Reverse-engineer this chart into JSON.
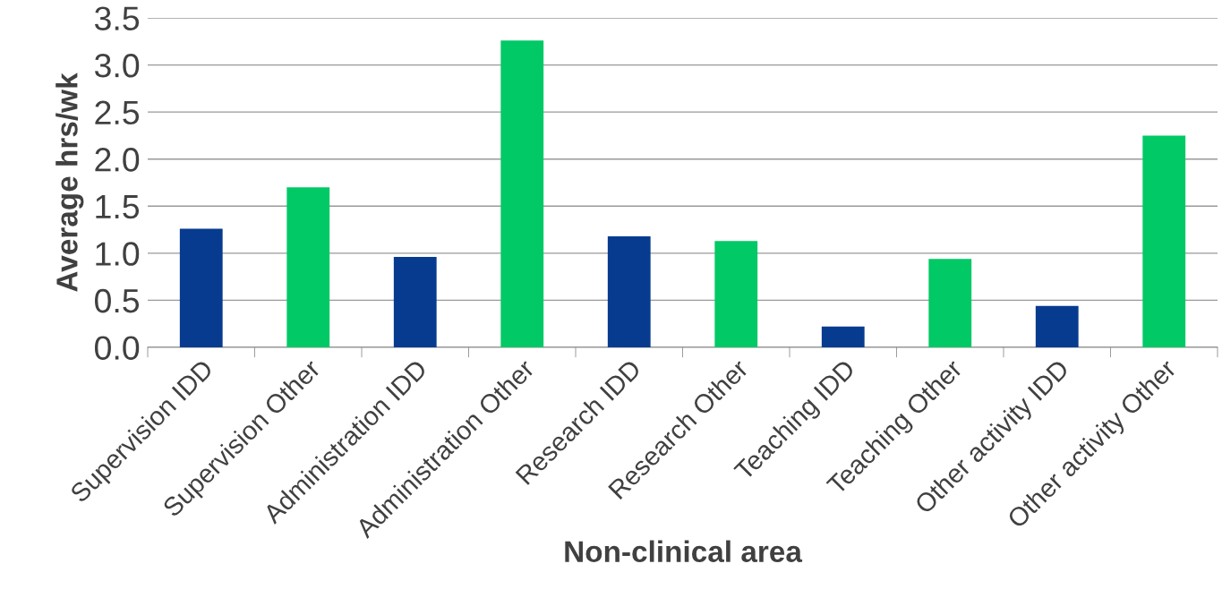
{
  "chart_data": {
    "type": "bar",
    "xlabel": "Non-clinical area",
    "ylabel": "Average hrs/wk",
    "categories": [
      "Supervision IDD",
      "Supervision Other",
      "Administration IDD",
      "Administration Other",
      "Research IDD",
      "Research Other",
      "Teaching IDD",
      "Teaching Other",
      "Other activity IDD",
      "Other activity Other"
    ],
    "values": [
      1.26,
      1.7,
      0.96,
      3.26,
      1.18,
      1.13,
      0.22,
      0.94,
      0.44,
      2.25
    ],
    "colors": [
      "#063b8f",
      "#00c965",
      "#063b8f",
      "#00c965",
      "#063b8f",
      "#00c965",
      "#063b8f",
      "#00c965",
      "#063b8f",
      "#00c965"
    ],
    "ylim": [
      0,
      3.5
    ],
    "yticks": [
      {
        "value": 0,
        "label": "0.0"
      },
      {
        "value": 0.5,
        "label": "0.5"
      },
      {
        "value": 1,
        "label": "1.0"
      },
      {
        "value": 1.5,
        "label": "1.5"
      },
      {
        "value": 2,
        "label": "2.0"
      },
      {
        "value": 2.5,
        "label": "2.5"
      },
      {
        "value": 3,
        "label": "3.0"
      },
      {
        "value": 3.5,
        "label": "3.5"
      }
    ],
    "grid": "y",
    "legend": false
  }
}
